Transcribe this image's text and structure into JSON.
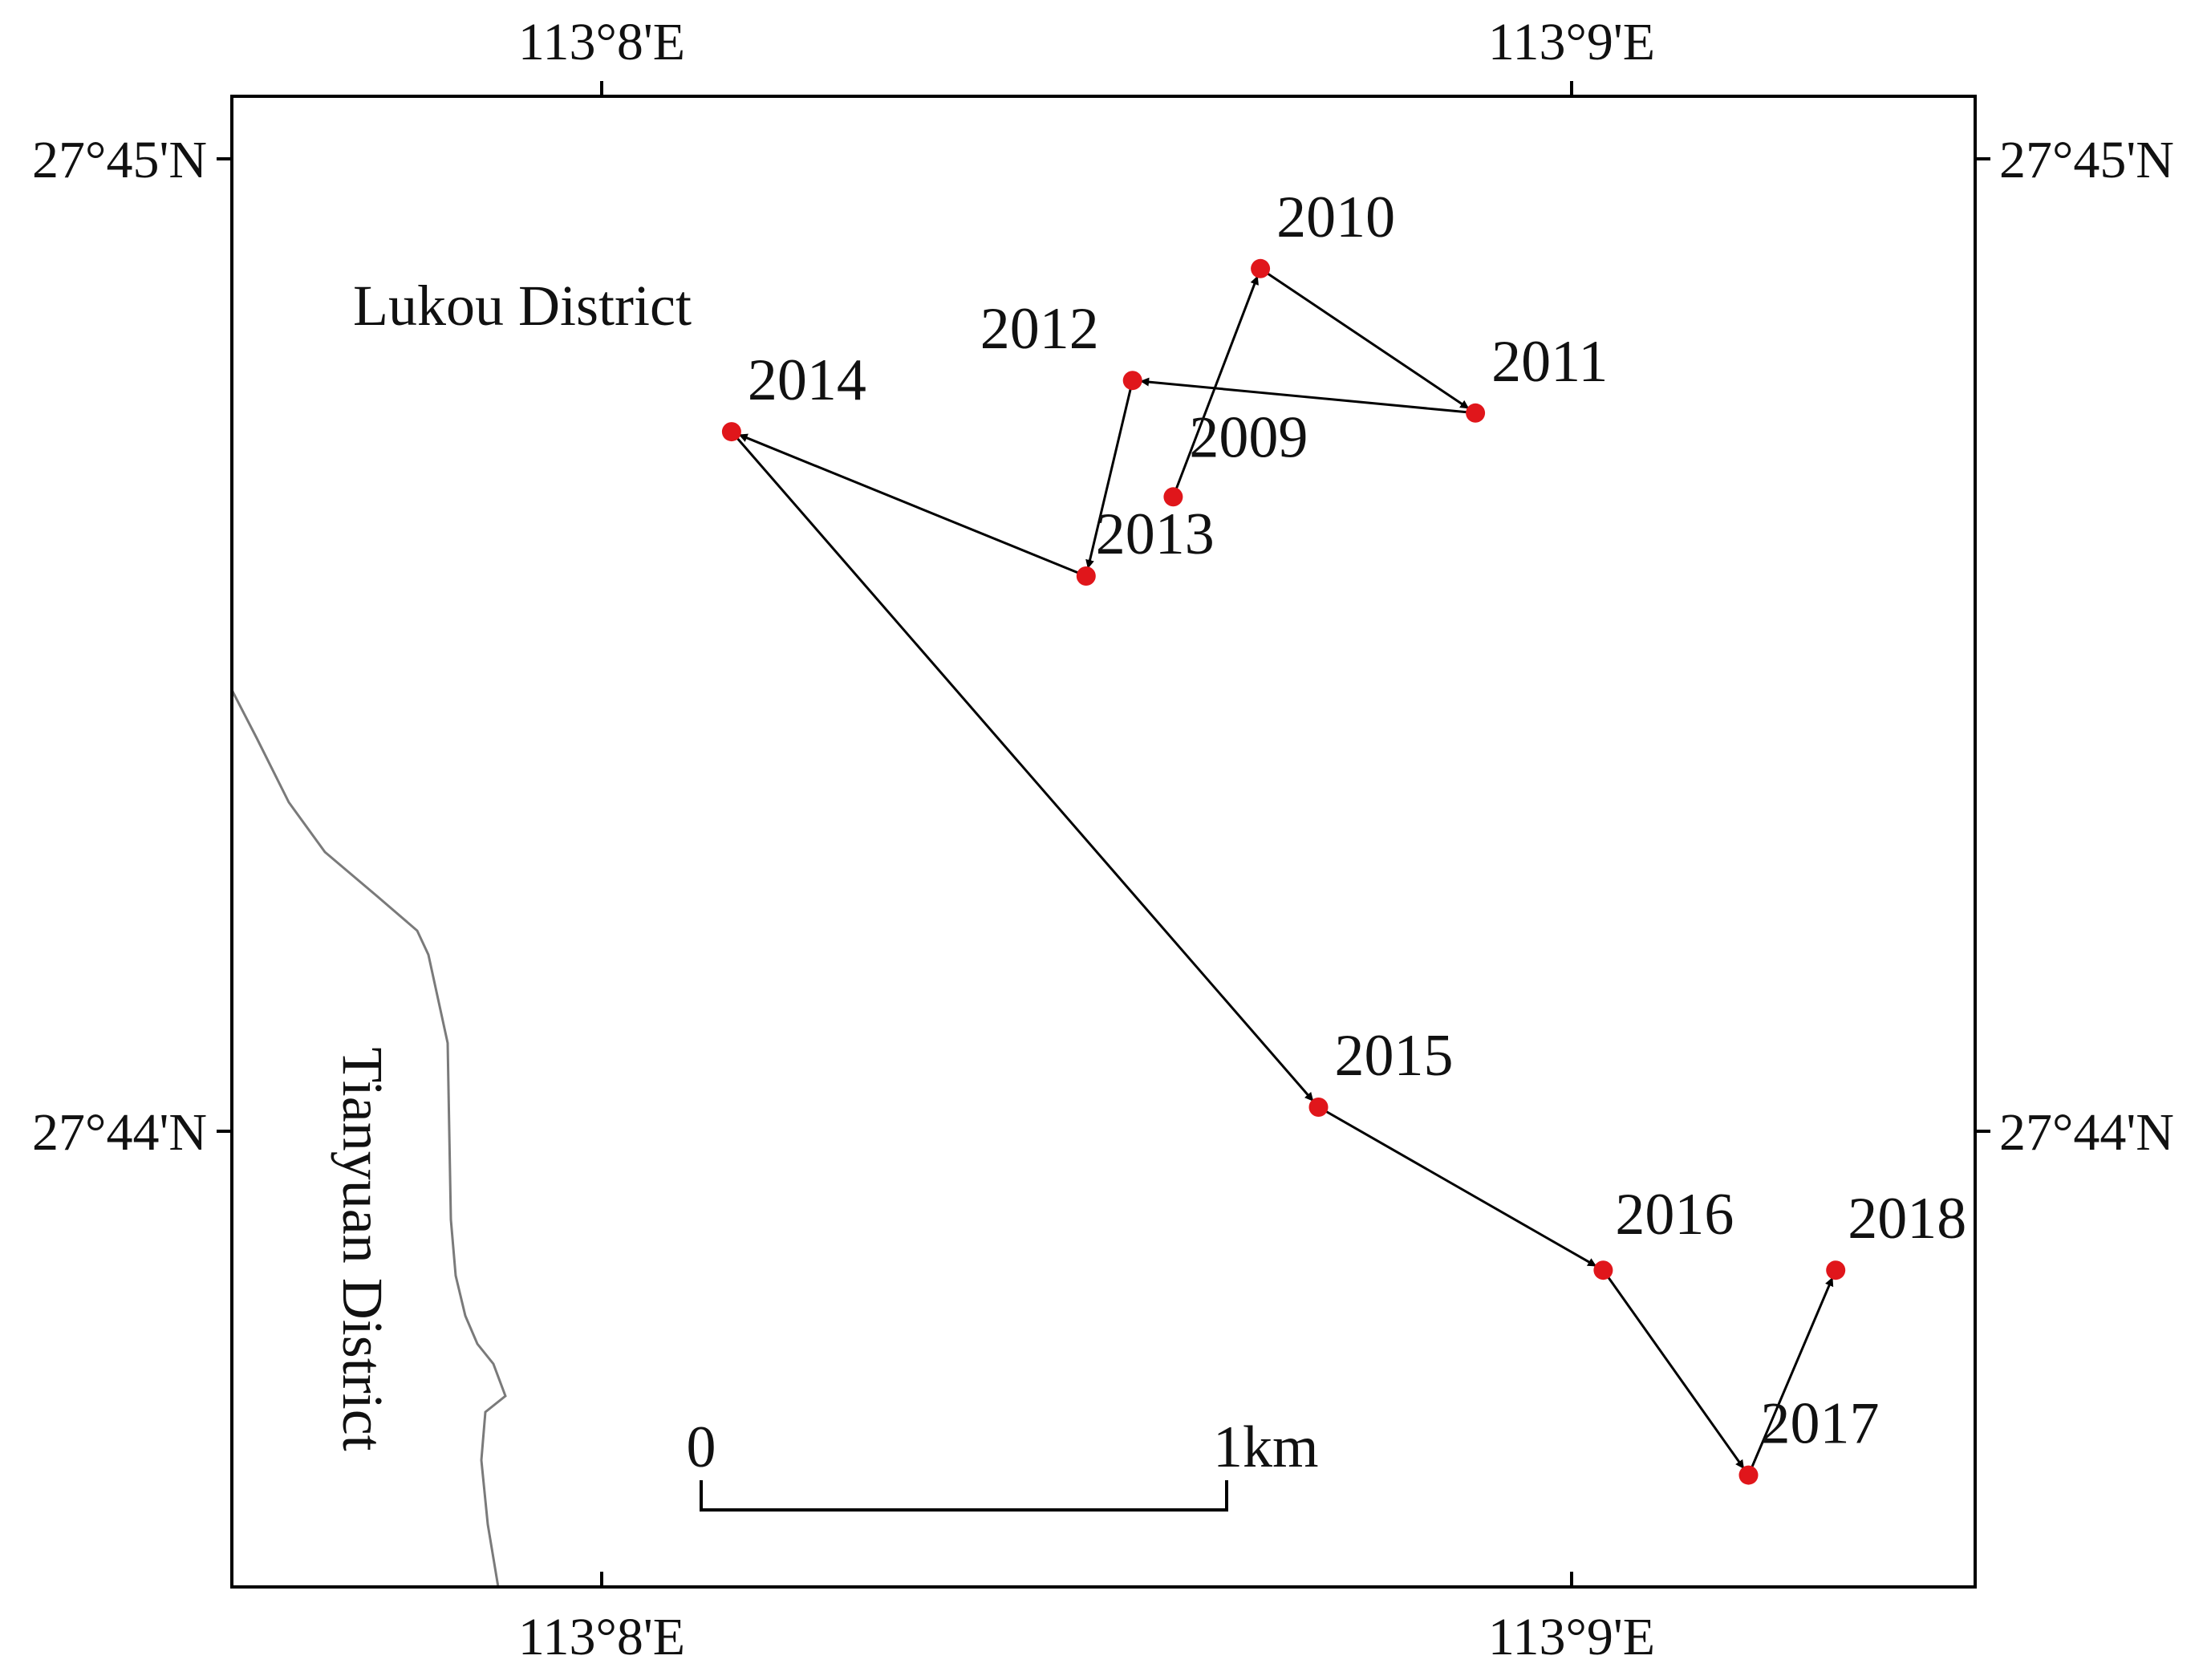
{
  "map": {
    "ticks": {
      "top": [
        "113°8'E",
        "113°9'E"
      ],
      "bottom": [
        "113°8'E",
        "113°9'E"
      ],
      "left": [
        "27°45'N",
        "27°44'N"
      ],
      "right": [
        "27°45'N",
        "27°44'N"
      ]
    },
    "districts": {
      "north": "Lukou District",
      "west": "Tianyuan District"
    },
    "scale_bar": {
      "start_label": "0",
      "end_label": "1km"
    },
    "colors": {
      "point": "#e0161b",
      "track": "#000000",
      "boundary": "#7a7a7a",
      "frame": "#000000"
    }
  },
  "chart_data": {
    "type": "scatter",
    "title": "",
    "xlabel": "",
    "ylabel": "",
    "x_unit": "longitude (°E)",
    "y_unit": "latitude (°N)",
    "xlim": [
      113.129,
      113.159
    ],
    "ylim": [
      27.7227,
      27.7547
    ],
    "grid": false,
    "legend": "none",
    "connected_in_order": true,
    "points": [
      {
        "label": "2009",
        "lon": 113.1452,
        "lat": 27.7461
      },
      {
        "label": "2010",
        "lon": 113.1467,
        "lat": 27.751
      },
      {
        "label": "2011",
        "lon": 113.1504,
        "lat": 27.7479
      },
      {
        "label": "2012",
        "lon": 113.1445,
        "lat": 27.7486
      },
      {
        "label": "2013",
        "lon": 113.1437,
        "lat": 27.7444
      },
      {
        "label": "2014",
        "lon": 113.1376,
        "lat": 27.7475
      },
      {
        "label": "2015",
        "lon": 113.1477,
        "lat": 27.733
      },
      {
        "label": "2016",
        "lon": 113.1526,
        "lat": 27.7295
      },
      {
        "label": "2017",
        "lon": 113.1551,
        "lat": 27.7251
      },
      {
        "label": "2018",
        "lon": 113.1566,
        "lat": 27.7295
      }
    ]
  }
}
